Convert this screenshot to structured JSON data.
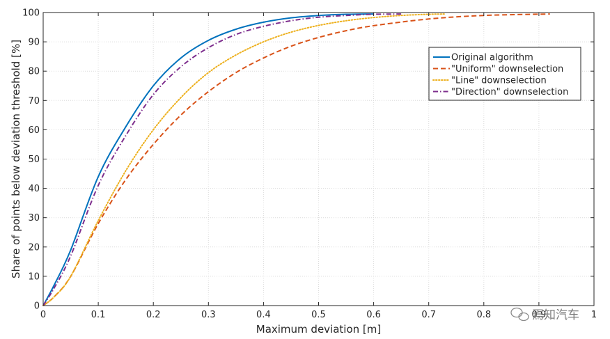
{
  "chart_data": {
    "type": "line",
    "title": "",
    "xlabel": "Maximum deviation [m]",
    "ylabel": "Share of points below deviation threshold [%]",
    "xlim": [
      0,
      1
    ],
    "ylim": [
      0,
      100
    ],
    "xticks": [
      "0",
      "0.1",
      "0.2",
      "0.3",
      "0.4",
      "0.5",
      "0.6",
      "0.7",
      "0.8",
      "0.9",
      "1"
    ],
    "yticks": [
      "0",
      "10",
      "20",
      "30",
      "40",
      "50",
      "60",
      "70",
      "80",
      "90",
      "100"
    ],
    "grid": true,
    "legend_position": "upper-right",
    "watermark": "焉知汽车",
    "series": [
      {
        "name": "Original algorithm",
        "color": "#0072BD",
        "style": "solid",
        "x": [
          0,
          0.02,
          0.05,
          0.1,
          0.15,
          0.2,
          0.25,
          0.3,
          0.35,
          0.4,
          0.45,
          0.5,
          0.55,
          0.6
        ],
        "y": [
          0,
          7,
          19,
          44,
          61,
          75,
          84.5,
          90.5,
          94.3,
          96.7,
          98.2,
          99,
          99.4,
          99.5
        ]
      },
      {
        "name": "\"Uniform\" downselection",
        "color": "#D95319",
        "style": "dashed",
        "x": [
          0,
          0.02,
          0.05,
          0.1,
          0.15,
          0.2,
          0.25,
          0.3,
          0.35,
          0.4,
          0.45,
          0.5,
          0.55,
          0.6,
          0.7,
          0.8,
          0.92
        ],
        "y": [
          0,
          3,
          10,
          28,
          43,
          55,
          65,
          73,
          79.5,
          84.5,
          88.5,
          91.5,
          93.8,
          95.5,
          97.8,
          99,
          99.5
        ]
      },
      {
        "name": "\"Line\" downselection",
        "color": "#EDB120",
        "style": "dotted",
        "x": [
          0,
          0.02,
          0.05,
          0.1,
          0.15,
          0.2,
          0.25,
          0.3,
          0.35,
          0.4,
          0.45,
          0.5,
          0.55,
          0.6,
          0.65,
          0.7,
          0.73
        ],
        "y": [
          0,
          3,
          10,
          29,
          46,
          60,
          71,
          79.5,
          85.5,
          90,
          93.3,
          95.6,
          97.2,
          98.3,
          99,
          99.4,
          99.5
        ]
      },
      {
        "name": "\"Direction\" downselection",
        "color": "#7E2F8E",
        "style": "dashdot",
        "x": [
          0,
          0.02,
          0.05,
          0.1,
          0.15,
          0.2,
          0.25,
          0.3,
          0.35,
          0.4,
          0.45,
          0.5,
          0.55,
          0.6,
          0.65
        ],
        "y": [
          0,
          6,
          17,
          41,
          58,
          72,
          81.5,
          88,
          92.5,
          95.3,
          97.2,
          98.4,
          99,
          99.4,
          99.5
        ]
      }
    ]
  }
}
